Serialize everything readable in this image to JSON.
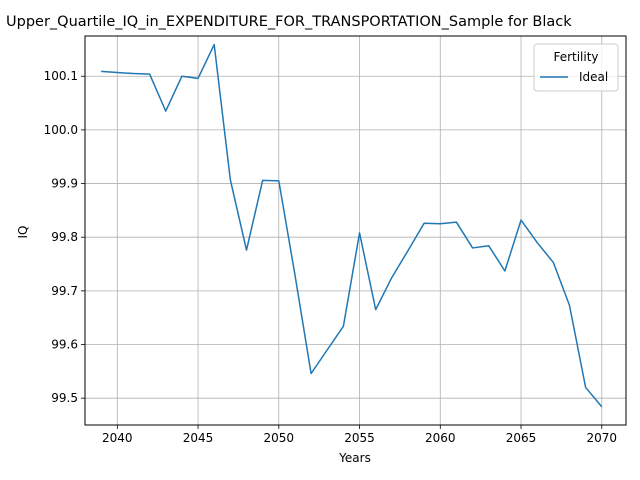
{
  "chart_data": {
    "type": "line",
    "title": "Upper_Quartile_IQ_in_EXPENDITURE_FOR_TRANSPORTATION_Sample for Black",
    "xlabel": "Years",
    "ylabel": "IQ",
    "xlim": [
      2038,
      2071.5
    ],
    "ylim": [
      99.45,
      100.175
    ],
    "x_ticks": [
      2040,
      2045,
      2050,
      2055,
      2060,
      2065,
      2070
    ],
    "y_ticks": [
      99.5,
      99.6,
      99.7,
      99.8,
      99.9,
      100.0,
      100.1
    ],
    "grid": true,
    "legend": {
      "title": "Fertility",
      "placement": "top-right"
    },
    "series": [
      {
        "name": "Ideal",
        "color": "#1f77b4",
        "x": [
          2039,
          2040,
          2041,
          2042,
          2043,
          2044,
          2045,
          2046,
          2047,
          2048,
          2049,
          2050,
          2051,
          2052,
          2053,
          2054,
          2055,
          2056,
          2057,
          2058,
          2059,
          2060,
          2061,
          2062,
          2063,
          2064,
          2065,
          2066,
          2067,
          2068,
          2069,
          2070
        ],
        "values": [
          100.109,
          100.107,
          100.105,
          100.104,
          100.035,
          100.1,
          100.096,
          100.159,
          99.907,
          99.776,
          99.906,
          99.905,
          99.73,
          99.546,
          99.59,
          99.634,
          99.808,
          99.665,
          99.725,
          99.775,
          99.826,
          99.825,
          99.828,
          99.78,
          99.784,
          99.737,
          99.832,
          99.79,
          99.753,
          99.673,
          99.52,
          99.484
        ]
      }
    ]
  }
}
